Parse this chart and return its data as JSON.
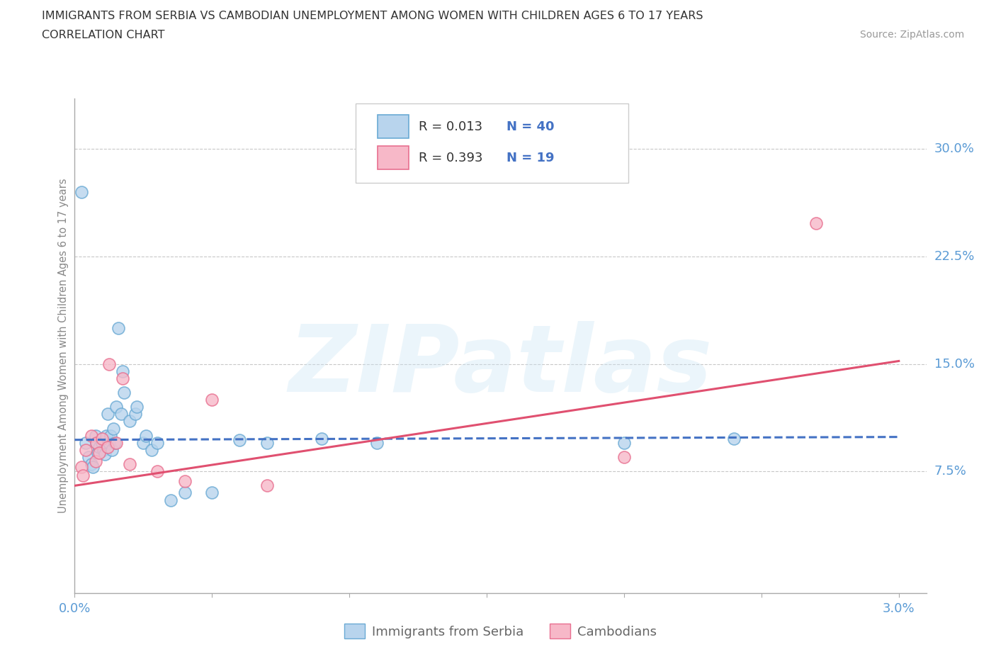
{
  "title_line1": "IMMIGRANTS FROM SERBIA VS CAMBODIAN UNEMPLOYMENT AMONG WOMEN WITH CHILDREN AGES 6 TO 17 YEARS",
  "title_line2": "CORRELATION CHART",
  "source_text": "Source: ZipAtlas.com",
  "ylabel": "Unemployment Among Women with Children Ages 6 to 17 years",
  "xlim": [
    0.0,
    0.031
  ],
  "ylim": [
    -0.01,
    0.335
  ],
  "xticks": [
    0.0,
    0.005,
    0.01,
    0.015,
    0.02,
    0.025,
    0.03
  ],
  "xticklabels": [
    "0.0%",
    "",
    "",
    "",
    "",
    "",
    "3.0%"
  ],
  "ytick_positions": [
    0.075,
    0.15,
    0.225,
    0.3
  ],
  "yticklabels": [
    "7.5%",
    "15.0%",
    "22.5%",
    "30.0%"
  ],
  "grid_color": "#c8c8c8",
  "legend_r1": "R = 0.013",
  "legend_n1": "N = 40",
  "legend_r2": "R = 0.393",
  "legend_n2": "N = 19",
  "serbia_fill": "#b8d4ed",
  "serbia_edge": "#6aaad4",
  "cambodian_fill": "#f7b8c8",
  "cambodian_edge": "#e87090",
  "serbia_line_color": "#4472c4",
  "cambodian_line_color": "#e05070",
  "serbia_scatter_x": [
    0.00025,
    0.0004,
    0.0005,
    0.0006,
    0.00065,
    0.00075,
    0.0008,
    0.00085,
    0.0009,
    0.001,
    0.00105,
    0.0011,
    0.00115,
    0.0012,
    0.00125,
    0.0013,
    0.00135,
    0.0014,
    0.00145,
    0.0015,
    0.0016,
    0.0017,
    0.00175,
    0.0018,
    0.002,
    0.0022,
    0.00225,
    0.0025,
    0.0026,
    0.0028,
    0.003,
    0.0035,
    0.004,
    0.005,
    0.006,
    0.007,
    0.009,
    0.011,
    0.02,
    0.024
  ],
  "serbia_scatter_y": [
    0.27,
    0.095,
    0.085,
    0.08,
    0.078,
    0.1,
    0.095,
    0.088,
    0.092,
    0.095,
    0.09,
    0.087,
    0.1,
    0.115,
    0.095,
    0.1,
    0.09,
    0.105,
    0.095,
    0.12,
    0.175,
    0.115,
    0.145,
    0.13,
    0.11,
    0.115,
    0.12,
    0.095,
    0.1,
    0.09,
    0.095,
    0.055,
    0.06,
    0.06,
    0.097,
    0.095,
    0.098,
    0.095,
    0.095,
    0.098
  ],
  "cambodian_scatter_x": [
    0.00025,
    0.0003,
    0.0004,
    0.0006,
    0.00075,
    0.0008,
    0.0009,
    0.001,
    0.0012,
    0.00125,
    0.0015,
    0.00175,
    0.002,
    0.003,
    0.004,
    0.005,
    0.007,
    0.02,
    0.027
  ],
  "cambodian_scatter_y": [
    0.078,
    0.072,
    0.09,
    0.1,
    0.082,
    0.095,
    0.088,
    0.098,
    0.092,
    0.15,
    0.095,
    0.14,
    0.08,
    0.075,
    0.068,
    0.125,
    0.065,
    0.085,
    0.248
  ],
  "serbia_trend_x": [
    0.0,
    0.03
  ],
  "serbia_trend_y": [
    0.097,
    0.099
  ],
  "cambodian_trend_x": [
    0.0,
    0.03
  ],
  "cambodian_trend_y": [
    0.065,
    0.152
  ]
}
